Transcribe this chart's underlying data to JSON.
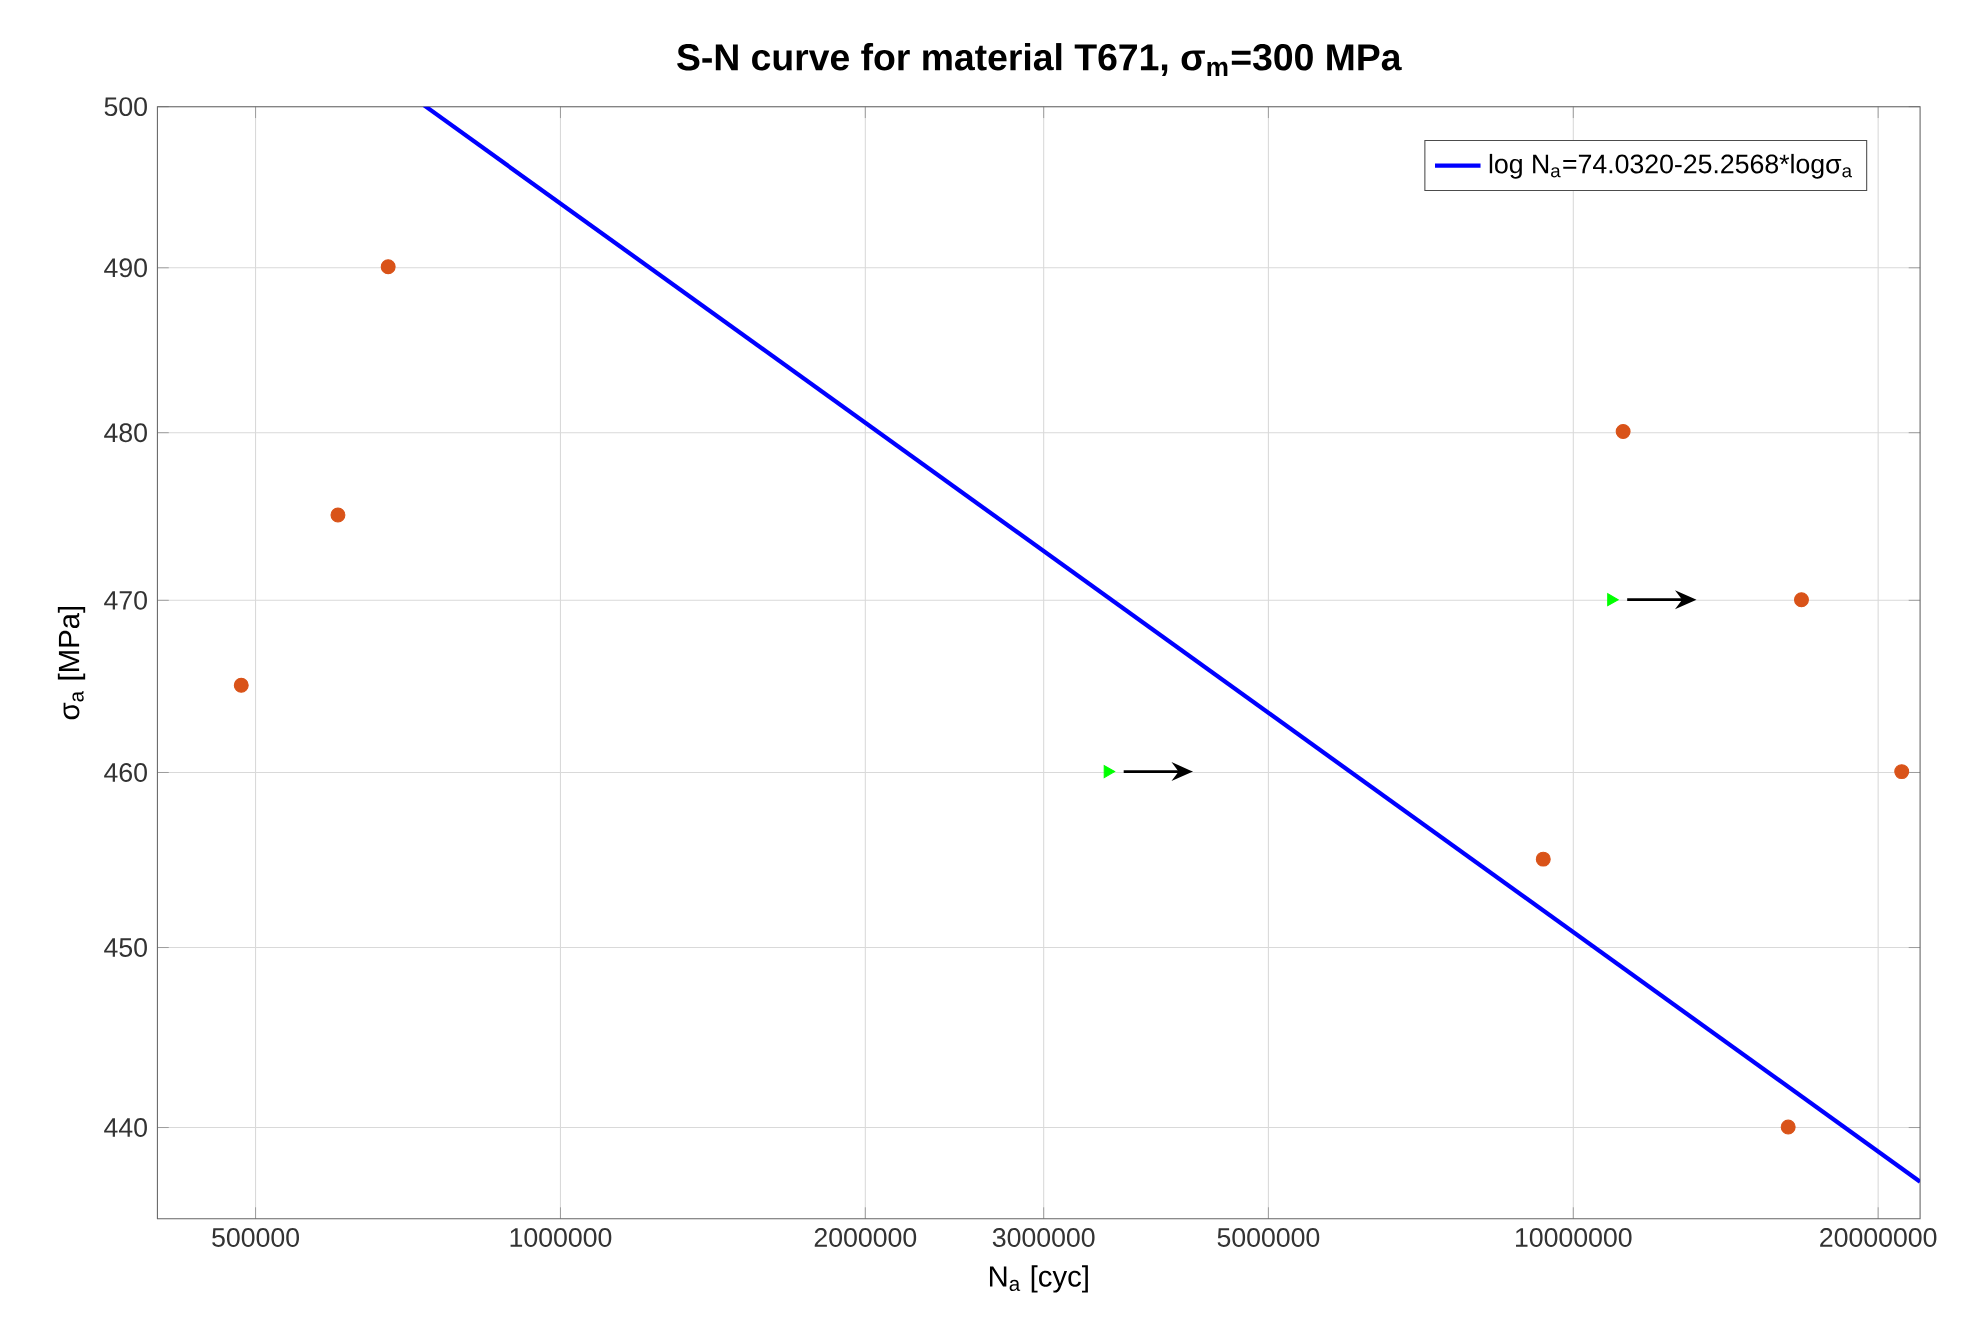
{
  "chart_data": {
    "type": "scatter",
    "title": "S-N curve for material T671, σ$_{m}$=300 MPa",
    "xlabel": "N$_{a}$ [cyc]",
    "ylabel": "σ$_{a}$ [MPa]",
    "log": "xy",
    "xlim": [
      400000,
      22000000
    ],
    "ylim": [
      435,
      500
    ],
    "xticks": [
      500000,
      1000000,
      2000000,
      3000000,
      5000000,
      10000000,
      20000000
    ],
    "yticks": [
      440,
      450,
      460,
      470,
      480,
      490,
      500
    ],
    "grid": true,
    "legend": "top right",
    "series": [
      {
        "type": "line",
        "name": "log N$_{a}$=74.0320-25.2568*logσ$_{a}$",
        "color": "#0000ff",
        "marker": "none",
        "x": [
          733000,
          22000000
        ],
        "values": [
          500,
          437
        ]
      },
      {
        "color": "#d95319",
        "marker": "circle",
        "x": [
          484000,
          603000,
          676000,
          9340000,
          11200000,
          16300000,
          16800000,
          21100000
        ],
        "values": [
          465,
          475,
          490,
          455,
          480,
          440,
          470,
          460
        ]
      },
      {
        "color": "#00ff00",
        "marker": "triangle",
        "x": [
          3470000,
          10900000
        ],
        "values": [
          460,
          470
        ]
      }
    ]
  }
}
